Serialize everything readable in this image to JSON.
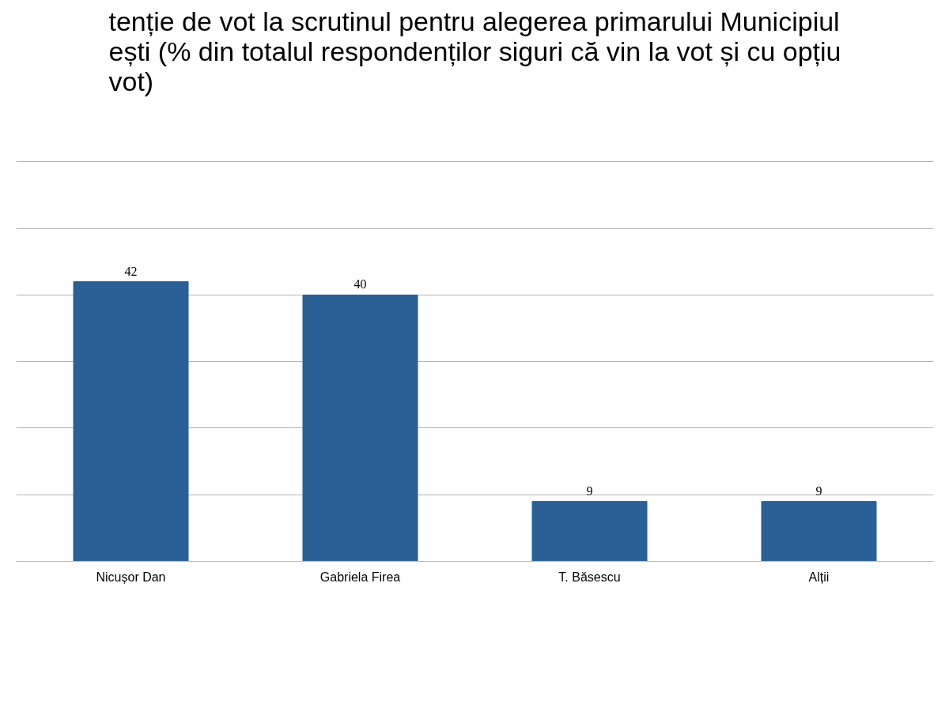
{
  "chart_data": {
    "type": "bar",
    "title": "tenție de vot la scrutinul pentru alegerea primarului Municipiul\nești (% din totalul respondenților siguri că vin la vot și cu opțiu\nvot)",
    "categories": [
      "Nicușor Dan",
      "Gabriela Firea",
      "T. Băsescu",
      "Alții"
    ],
    "values": [
      42,
      40,
      9,
      9
    ],
    "color": "#2b6096",
    "tick_labels": "x",
    "grid": "y",
    "data_labels": true
  }
}
